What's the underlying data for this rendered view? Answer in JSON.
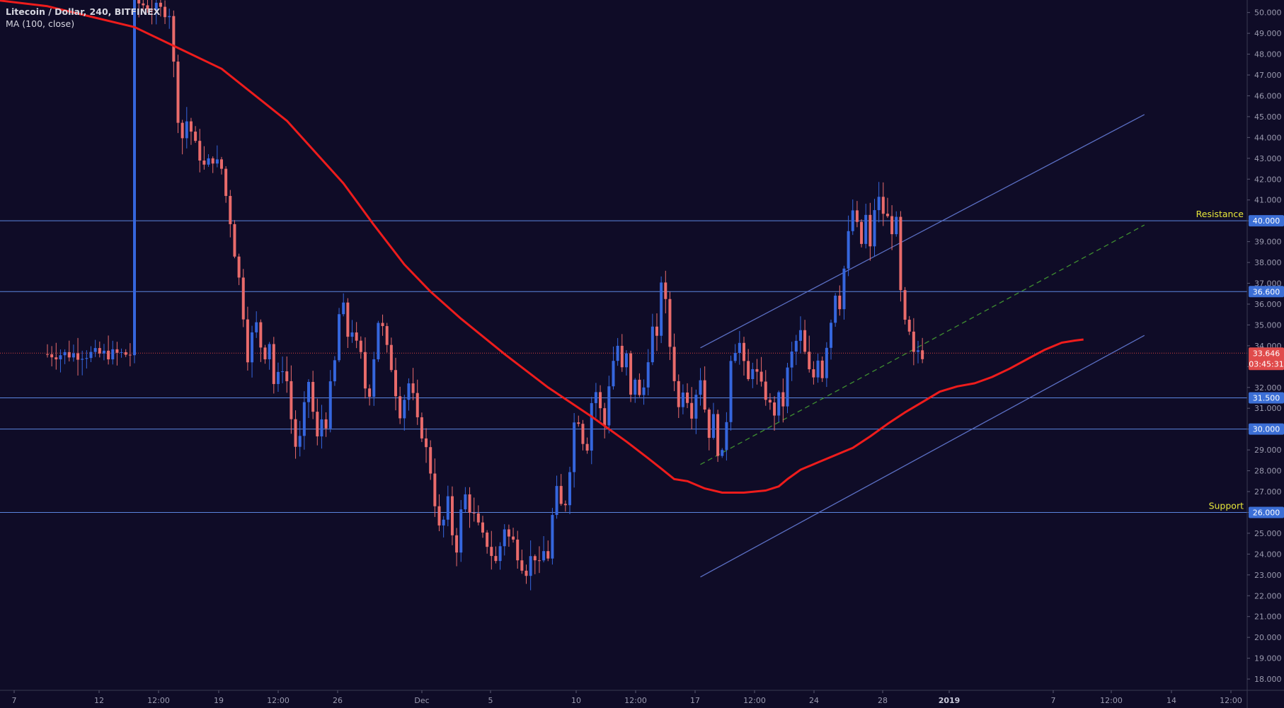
{
  "header": {
    "symbol_line": "Litecoin / Dollar, 240, BITFINEX",
    "indicator_line": "MA (100, close)"
  },
  "colors": {
    "background": "#0f0c27",
    "up_candle": "#3566dd",
    "down_candle": "#e96b6b",
    "ma_line": "#ee1c1c",
    "hline": "#5b86e0",
    "channel": "#5b6fc4",
    "midline": "#3f8f30",
    "last_price_line": "#d84040",
    "label_text": "#e8e83a",
    "axis_text": "#9a9aae"
  },
  "chart_data": {
    "type": "candlestick",
    "title": "Litecoin / Dollar, 240, BITFINEX",
    "indicator": "MA (100, close)",
    "x_axis": {
      "tick_labels": [
        "7",
        "12",
        "12:00",
        "19",
        "12:00",
        "26",
        "Dec",
        "5",
        "10",
        "12:00",
        "17",
        "12:00",
        "24",
        "28",
        "2019",
        "7",
        "12:00",
        "14",
        "12:00"
      ]
    },
    "y_axis": {
      "range": [
        17.5,
        50.6
      ],
      "tick_labels": [
        "18.000",
        "19.000",
        "20.000",
        "21.000",
        "22.000",
        "23.000",
        "24.000",
        "25.000",
        "26.000",
        "27.000",
        "28.000",
        "29.000",
        "30.000",
        "31.000",
        "32.000",
        "33.000",
        "34.000",
        "35.000",
        "36.000",
        "37.000",
        "38.000",
        "39.000",
        "40.000",
        "41.000",
        "42.000",
        "43.000",
        "44.000",
        "45.000",
        "46.000",
        "47.000",
        "48.000",
        "49.000",
        "50.000"
      ],
      "position": "right"
    },
    "ohlc_path": [
      [
        0,
        50.5
      ],
      [
        8,
        50.0
      ],
      [
        9,
        47.5
      ],
      [
        10,
        45.0
      ],
      [
        11,
        44.0
      ],
      [
        12,
        44.8
      ],
      [
        13,
        44.3
      ],
      [
        14,
        43.6
      ],
      [
        16,
        42.6
      ],
      [
        18,
        43.0
      ],
      [
        20,
        42.5
      ],
      [
        21,
        41.2
      ],
      [
        22,
        40.0
      ],
      [
        23,
        38.5
      ],
      [
        24,
        37.2
      ],
      [
        25,
        35.5
      ],
      [
        26,
        33.5
      ],
      [
        27,
        34.5
      ],
      [
        28,
        35.0
      ],
      [
        29,
        34.0
      ],
      [
        30,
        33.6
      ],
      [
        31,
        34.2
      ],
      [
        32,
        32.2
      ],
      [
        33,
        32.5
      ],
      [
        34,
        33.0
      ],
      [
        35,
        32.3
      ],
      [
        36,
        30.5
      ],
      [
        37,
        29.2
      ],
      [
        38,
        29.5
      ],
      [
        39,
        31.0
      ],
      [
        40,
        32.3
      ],
      [
        41,
        30.8
      ],
      [
        42,
        29.5
      ],
      [
        43,
        30.5
      ],
      [
        44,
        30.3
      ],
      [
        45,
        32.0
      ],
      [
        46,
        33.2
      ],
      [
        47,
        35.5
      ],
      [
        48,
        35.8
      ],
      [
        49,
        34.5
      ],
      [
        50,
        34.8
      ],
      [
        51,
        34.0
      ],
      [
        52,
        33.5
      ],
      [
        53,
        32.0
      ],
      [
        54,
        31.8
      ],
      [
        55,
        33.5
      ],
      [
        56,
        35.2
      ],
      [
        57,
        34.8
      ],
      [
        58,
        33.8
      ],
      [
        59,
        33.0
      ],
      [
        60,
        31.8
      ],
      [
        61,
        30.8
      ],
      [
        62,
        31.5
      ],
      [
        63,
        32.2
      ],
      [
        64,
        31.5
      ],
      [
        65,
        30.3
      ],
      [
        66,
        29.8
      ],
      [
        67,
        29.0
      ],
      [
        68,
        28.0
      ],
      [
        69,
        26.5
      ],
      [
        70,
        25.2
      ],
      [
        71,
        25.6
      ],
      [
        72,
        26.5
      ],
      [
        73,
        25.0
      ],
      [
        74,
        24.3
      ],
      [
        75,
        26.0
      ],
      [
        76,
        26.8
      ],
      [
        77,
        26.2
      ],
      [
        78,
        25.8
      ],
      [
        79,
        25.3
      ],
      [
        80,
        24.8
      ],
      [
        81,
        24.5
      ],
      [
        82,
        24.0
      ],
      [
        83,
        23.6
      ],
      [
        84,
        24.4
      ],
      [
        85,
        25.3
      ],
      [
        86,
        24.8
      ],
      [
        87,
        24.6
      ],
      [
        88,
        24.0
      ],
      [
        89,
        23.5
      ],
      [
        90,
        23.2
      ],
      [
        91,
        23.8
      ],
      [
        92,
        23.9
      ],
      [
        93,
        23.4
      ],
      [
        94,
        24.1
      ],
      [
        95,
        23.9
      ],
      [
        96,
        25.8
      ],
      [
        97,
        27.0
      ],
      [
        98,
        26.3
      ],
      [
        99,
        26.5
      ],
      [
        100,
        28.2
      ],
      [
        101,
        30.3
      ],
      [
        102,
        30.5
      ],
      [
        103,
        29.5
      ],
      [
        104,
        29.2
      ],
      [
        105,
        31.3
      ],
      [
        106,
        31.8
      ],
      [
        107,
        30.9
      ],
      [
        108,
        30.2
      ],
      [
        109,
        32.2
      ],
      [
        110,
        33.3
      ],
      [
        111,
        34.0
      ],
      [
        112,
        32.8
      ],
      [
        113,
        33.5
      ],
      [
        114,
        31.5
      ],
      [
        115,
        32.5
      ],
      [
        116,
        31.5
      ],
      [
        117,
        32.0
      ],
      [
        118,
        33.5
      ],
      [
        119,
        34.8
      ],
      [
        120,
        34.2
      ],
      [
        121,
        37.2
      ],
      [
        122,
        36.0
      ],
      [
        123,
        34.0
      ],
      [
        124,
        32.5
      ],
      [
        125,
        31.0
      ],
      [
        126,
        32.0
      ],
      [
        127,
        31.5
      ],
      [
        128,
        30.8
      ],
      [
        129,
        31.8
      ],
      [
        130,
        32.5
      ],
      [
        131,
        31.0
      ],
      [
        132,
        29.8
      ],
      [
        133,
        30.5
      ],
      [
        134,
        29.0
      ],
      [
        135,
        28.7
      ],
      [
        136,
        30.5
      ],
      [
        137,
        33.5
      ],
      [
        138,
        33.9
      ],
      [
        139,
        34.1
      ],
      [
        140,
        33.0
      ],
      [
        141,
        32.3
      ],
      [
        142,
        33.1
      ],
      [
        143,
        32.6
      ],
      [
        144,
        32.0
      ],
      [
        145,
        31.6
      ],
      [
        146,
        31.1
      ],
      [
        147,
        30.8
      ],
      [
        148,
        31.5
      ],
      [
        149,
        31.2
      ],
      [
        150,
        32.8
      ],
      [
        151,
        33.6
      ],
      [
        152,
        34.2
      ],
      [
        153,
        34.6
      ],
      [
        154,
        33.6
      ],
      [
        155,
        32.7
      ],
      [
        156,
        32.5
      ],
      [
        157,
        33.5
      ],
      [
        158,
        32.6
      ],
      [
        159,
        34.1
      ],
      [
        160,
        35.2
      ],
      [
        161,
        36.6
      ],
      [
        162,
        36.0
      ],
      [
        163,
        37.7
      ],
      [
        164,
        39.3
      ],
      [
        165,
        40.5
      ],
      [
        166,
        39.7
      ],
      [
        167,
        38.9
      ],
      [
        168,
        40.2
      ],
      [
        169,
        38.6
      ],
      [
        170,
        40.6
      ],
      [
        171,
        41.0
      ],
      [
        172,
        40.4
      ],
      [
        173,
        40.1
      ],
      [
        174,
        39.6
      ],
      [
        175,
        39.9
      ],
      [
        176,
        36.5
      ],
      [
        177,
        35.0
      ],
      [
        178,
        34.5
      ],
      [
        179,
        33.5
      ],
      [
        180,
        33.8
      ],
      [
        181,
        33.6
      ]
    ],
    "moving_average_path": [
      [
        -40,
        50.8
      ],
      [
        -20,
        50.3
      ],
      [
        0,
        49.3
      ],
      [
        20,
        47.3
      ],
      [
        35,
        44.8
      ],
      [
        48,
        41.8
      ],
      [
        55,
        39.8
      ],
      [
        62,
        37.9
      ],
      [
        68,
        36.6
      ],
      [
        75,
        35.3
      ],
      [
        85,
        33.6
      ],
      [
        95,
        32.0
      ],
      [
        105,
        30.6
      ],
      [
        113,
        29.4
      ],
      [
        118,
        28.6
      ],
      [
        121,
        28.1
      ],
      [
        124,
        27.6
      ],
      [
        127,
        27.5
      ],
      [
        131,
        27.15
      ],
      [
        135,
        26.95
      ],
      [
        140,
        26.95
      ],
      [
        145,
        27.05
      ],
      [
        148,
        27.25
      ],
      [
        150,
        27.6
      ],
      [
        153,
        28.05
      ],
      [
        157,
        28.4
      ],
      [
        161,
        28.75
      ],
      [
        165,
        29.1
      ],
      [
        169,
        29.65
      ],
      [
        173,
        30.25
      ],
      [
        177,
        30.8
      ],
      [
        181,
        31.3
      ],
      [
        185,
        31.8
      ],
      [
        189,
        32.05
      ],
      [
        193,
        32.2
      ],
      [
        197,
        32.5
      ],
      [
        201,
        32.9
      ],
      [
        205,
        33.35
      ],
      [
        209,
        33.8
      ],
      [
        213,
        34.15
      ],
      [
        216,
        34.25
      ],
      [
        218,
        34.3
      ]
    ],
    "last_price": 33.646,
    "countdown": "03:45:31",
    "horizontal_levels": [
      {
        "value": 40.0,
        "label": "40.000",
        "note": "Resistance"
      },
      {
        "value": 36.6,
        "label": "36.600",
        "note": ""
      },
      {
        "value": 31.5,
        "label": "31.500",
        "note": ""
      },
      {
        "value": 30.0,
        "label": "30.000",
        "note": ""
      },
      {
        "value": 26.0,
        "label": "26.000",
        "note": "Support"
      }
    ],
    "trendlines": [
      {
        "kind": "channel-upper",
        "p1": [
          130,
          33.9
        ],
        "p2": [
          232,
          45.1
        ]
      },
      {
        "kind": "channel-lower",
        "p1": [
          130,
          22.9
        ],
        "p2": [
          232,
          34.5
        ]
      },
      {
        "kind": "channel-mid-dashed",
        "p1": [
          130,
          28.3
        ],
        "p2": [
          232,
          39.8
        ]
      }
    ],
    "grid": false,
    "legend": "top-left"
  }
}
